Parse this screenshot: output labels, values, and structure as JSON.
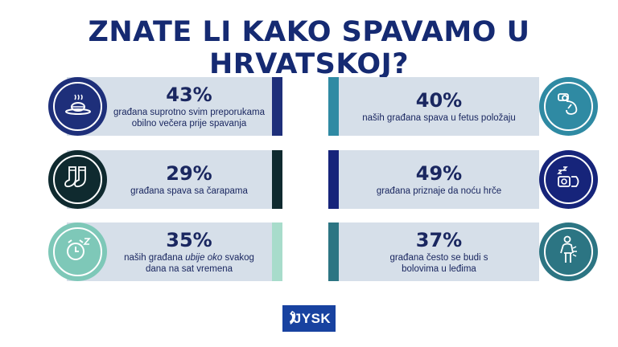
{
  "title": "ZNATE LI KAKO SPAVAMO U HRVATSKOJ?",
  "brand": "JYSK",
  "colors": {
    "title": "#152a72",
    "band": "#d6dfe9",
    "logo": "#1842a0"
  },
  "stats": [
    {
      "pct": "43%",
      "line1": "građana suprotno svim preporukama",
      "line2": "obilno večera prije spavanja",
      "icon": "dinner-plate-icon",
      "color": "#1e2f7a"
    },
    {
      "pct": "29%",
      "line1": "građana spava sa čarapama",
      "line2": "",
      "icon": "socks-icon",
      "color": "#0f2a2f"
    },
    {
      "pct": "35%",
      "line1_a": "naših građana ",
      "line1_em": "ubije oko",
      "line1_b": " svakog",
      "line2": "dana na sat vremena",
      "icon": "alarm-clock-icon",
      "color": "#7ec8b8"
    },
    {
      "pct": "40%",
      "line1": "naših građana spava u fetus položaju",
      "line2": "",
      "icon": "fetal-sleep-icon",
      "color": "#2f8aa3"
    },
    {
      "pct": "49%",
      "line1": "građana priznaje da noću hrče",
      "line2": "",
      "icon": "snoring-icon",
      "color": "#16247a"
    },
    {
      "pct": "37%",
      "line1": "građana često se budi s",
      "line2": "bolovima u leđima",
      "icon": "back-pain-icon",
      "color": "#2c7583"
    }
  ]
}
